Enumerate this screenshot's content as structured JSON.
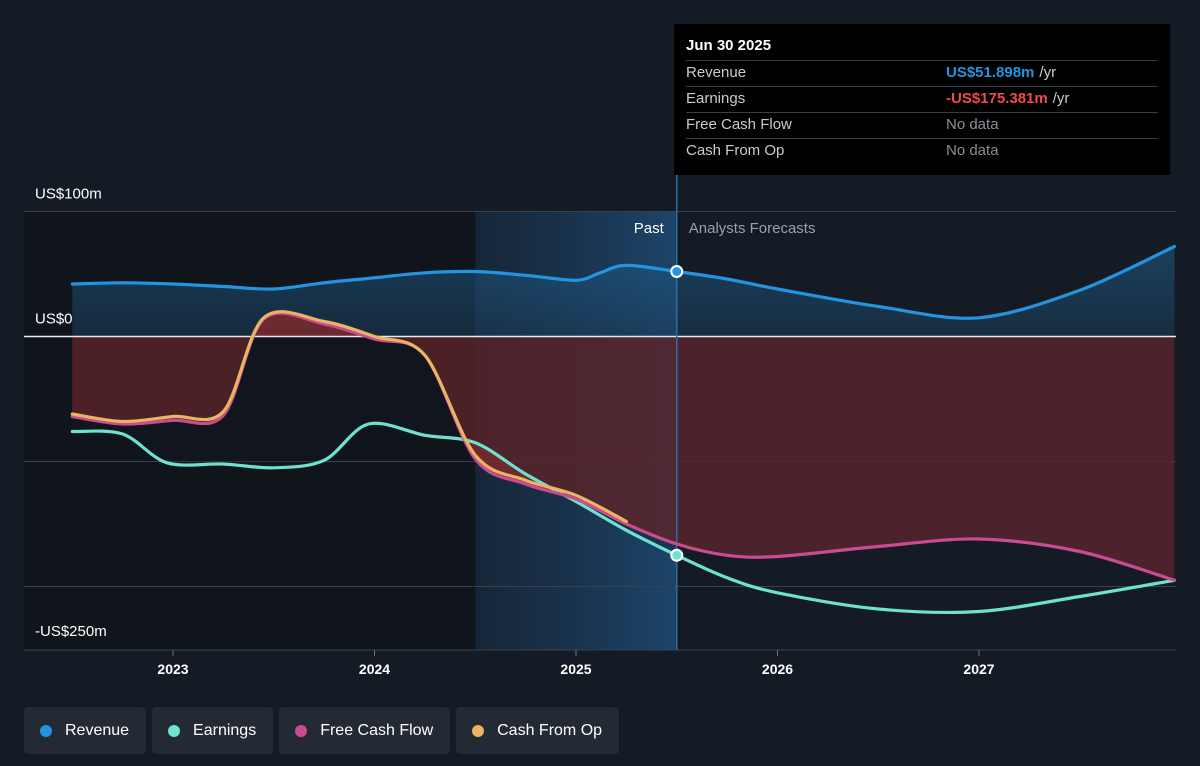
{
  "colors": {
    "background": "#151b24",
    "revenue": "#2394df",
    "earnings": "#6ee2cf",
    "free_cash_flow": "#c94c8e",
    "cash_from_op": "#e9b463"
  },
  "tooltip": {
    "date": "Jun 30 2025",
    "rows": [
      {
        "name": "Revenue",
        "value": "US$51.898m",
        "unit": "/yr",
        "color": "#2394df",
        "nodata": false
      },
      {
        "name": "Earnings",
        "value": "-US$175.381m",
        "unit": "/yr",
        "color": "#f04a4a",
        "nodata": false
      },
      {
        "name": "Free Cash Flow",
        "value": "No data",
        "unit": "",
        "color": "#8a8f96",
        "nodata": true
      },
      {
        "name": "Cash From Op",
        "value": "No data",
        "unit": "",
        "color": "#8a8f96",
        "nodata": true
      }
    ]
  },
  "legend": [
    {
      "label": "Revenue",
      "color": "#2394df"
    },
    {
      "label": "Earnings",
      "color": "#6ee2cf"
    },
    {
      "label": "Free Cash Flow",
      "color": "#c94c8e"
    },
    {
      "label": "Cash From Op",
      "color": "#e9b463"
    }
  ],
  "chart_data": {
    "type": "line",
    "x_axis": {
      "min": 2022.5,
      "max": 2027.97,
      "ticks": [
        2023,
        2024,
        2025,
        2026,
        2027
      ]
    },
    "y_axis": {
      "min": -250,
      "max": 100,
      "unit": "US$m",
      "labels": [
        {
          "value": 100,
          "text": "US$100m"
        },
        {
          "value": 0,
          "text": "US$0"
        },
        {
          "value": -250,
          "text": "-US$250m"
        }
      ],
      "gridlines": [
        100,
        0,
        -100,
        -200
      ]
    },
    "regions": {
      "past_label": "Past",
      "forecast_label": "Analysts Forecasts",
      "highlight_start": 2024.5,
      "divider": 2025.5
    },
    "series": [
      {
        "name": "Revenue",
        "key": "revenue",
        "color": "#2394df",
        "points": [
          [
            2022.5,
            42
          ],
          [
            2022.75,
            43
          ],
          [
            2023,
            42
          ],
          [
            2023.25,
            40
          ],
          [
            2023.5,
            38
          ],
          [
            2023.75,
            43
          ],
          [
            2024,
            47
          ],
          [
            2024.25,
            51
          ],
          [
            2024.5,
            52
          ],
          [
            2024.75,
            49
          ],
          [
            2025,
            45
          ],
          [
            2025.12,
            51
          ],
          [
            2025.25,
            57
          ],
          [
            2025.5,
            52
          ],
          [
            2025.75,
            46
          ],
          [
            2026,
            38
          ],
          [
            2026.5,
            24
          ],
          [
            2027,
            15
          ],
          [
            2027.5,
            37
          ],
          [
            2027.97,
            72
          ]
        ]
      },
      {
        "name": "Earnings",
        "key": "earnings",
        "color": "#6ee2cf",
        "points": [
          [
            2022.5,
            -76
          ],
          [
            2022.75,
            -78
          ],
          [
            2022.97,
            -101
          ],
          [
            2023.25,
            -102
          ],
          [
            2023.5,
            -105
          ],
          [
            2023.75,
            -99
          ],
          [
            2023.97,
            -70
          ],
          [
            2024.25,
            -79
          ],
          [
            2024.5,
            -85
          ],
          [
            2024.75,
            -110
          ],
          [
            2025,
            -132
          ],
          [
            2025.25,
            -155
          ],
          [
            2025.5,
            -175
          ],
          [
            2025.75,
            -193
          ],
          [
            2026,
            -205
          ],
          [
            2026.5,
            -218
          ],
          [
            2027,
            -220
          ],
          [
            2027.5,
            -208
          ],
          [
            2027.97,
            -195
          ]
        ]
      },
      {
        "name": "Free Cash Flow",
        "key": "free_cash_flow",
        "color": "#c94c8e",
        "points": [
          [
            2022.5,
            -64
          ],
          [
            2022.75,
            -70
          ],
          [
            2023,
            -67
          ],
          [
            2023.25,
            -63
          ],
          [
            2023.45,
            14
          ],
          [
            2023.75,
            10
          ],
          [
            2024,
            -2
          ],
          [
            2024.25,
            -15
          ],
          [
            2024.5,
            -98
          ],
          [
            2024.75,
            -118
          ],
          [
            2025,
            -130
          ],
          [
            2025.25,
            -150
          ],
          [
            2025.5,
            -166
          ],
          [
            2025.75,
            -175
          ],
          [
            2026,
            -176
          ],
          [
            2026.5,
            -168
          ],
          [
            2027,
            -162
          ],
          [
            2027.5,
            -172
          ],
          [
            2027.97,
            -195
          ]
        ]
      },
      {
        "name": "Cash From Op",
        "key": "cash_from_op",
        "color": "#e9b463",
        "points": [
          [
            2022.5,
            -62
          ],
          [
            2022.75,
            -68
          ],
          [
            2023,
            -64
          ],
          [
            2023.25,
            -60
          ],
          [
            2023.45,
            15
          ],
          [
            2023.75,
            12
          ],
          [
            2024,
            0
          ],
          [
            2024.25,
            -15
          ],
          [
            2024.5,
            -95
          ],
          [
            2024.75,
            -115
          ],
          [
            2025,
            -127
          ],
          [
            2025.25,
            -148
          ]
        ]
      }
    ],
    "markers": [
      {
        "series": "revenue",
        "x": 2025.5,
        "y": 52
      },
      {
        "series": "earnings",
        "x": 2025.5,
        "y": -175
      }
    ]
  }
}
